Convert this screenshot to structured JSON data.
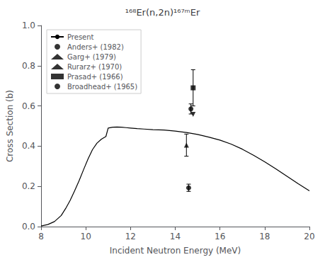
{
  "chart_data": {
    "type": "line",
    "title": "¹⁶⁸Er(n,2n)¹⁶⁷ᵐEr",
    "xlabel": "Incident Neutron Energy (MeV)",
    "ylabel": "Cross Section (b)",
    "xlim": [
      8,
      20
    ],
    "ylim": [
      0.0,
      1.0
    ],
    "xticks": [
      8,
      10,
      12,
      14,
      16,
      18,
      20
    ],
    "yticks": [
      {
        "value": 0.0,
        "label": "0.0"
      },
      0.2,
      0.4,
      0.6,
      0.8,
      {
        "value": 1.0,
        "label": "1.0"
      }
    ],
    "grid": false,
    "legend": "upper left",
    "series": [
      {
        "name": "Present",
        "type": "line",
        "color": "black",
        "x": [
          8.0,
          8.3,
          8.6,
          8.9,
          9.1,
          9.3,
          9.5,
          9.7,
          9.9,
          10.1,
          10.3,
          10.5,
          10.7,
          10.9,
          11.0,
          11.2,
          11.4,
          11.6,
          11.8,
          12.0,
          12.3,
          12.6,
          13.0,
          13.5,
          14.0,
          14.5,
          15.0,
          15.5,
          16.0,
          16.5,
          17.0,
          17.5,
          18.0,
          18.5,
          19.0,
          19.5,
          20.0
        ],
        "values": [
          0.003,
          0.01,
          0.025,
          0.055,
          0.09,
          0.13,
          0.178,
          0.228,
          0.283,
          0.336,
          0.383,
          0.415,
          0.435,
          0.448,
          0.49,
          0.494,
          0.495,
          0.494,
          0.492,
          0.49,
          0.487,
          0.485,
          0.482,
          0.48,
          0.475,
          0.468,
          0.458,
          0.445,
          0.43,
          0.41,
          0.385,
          0.355,
          0.322,
          0.287,
          0.25,
          0.213,
          0.178
        ]
      },
      {
        "name": "Anders+ (1982)",
        "type": "scatter",
        "marker": "circle",
        "color": "black",
        "x": [
          14.7
        ],
        "values": [
          0.585
        ],
        "yerr": [
          0.025
        ]
      },
      {
        "name": "Garg+ (1979)",
        "type": "scatter",
        "marker": "triangle_down",
        "color": "black",
        "x": [
          14.8
        ],
        "values": [
          0.558
        ],
        "yerr": [
          0.0
        ]
      },
      {
        "name": "Rurarz+ (1970)",
        "type": "scatter",
        "marker": "triangle_up",
        "color": "black",
        "x": [
          14.5
        ],
        "values": [
          0.405
        ],
        "yerr": [
          0.055
        ]
      },
      {
        "name": "Prasad+ (1966)",
        "type": "scatter",
        "marker": "square",
        "color": "black",
        "x": [
          14.8
        ],
        "values": [
          0.69
        ],
        "yerr": [
          0.09
        ]
      },
      {
        "name": "Broadhead+ (1965)",
        "type": "scatter",
        "marker": "circle",
        "color": "black",
        "x": [
          14.6
        ],
        "values": [
          0.193
        ],
        "yerr": [
          0.018
        ]
      }
    ]
  }
}
